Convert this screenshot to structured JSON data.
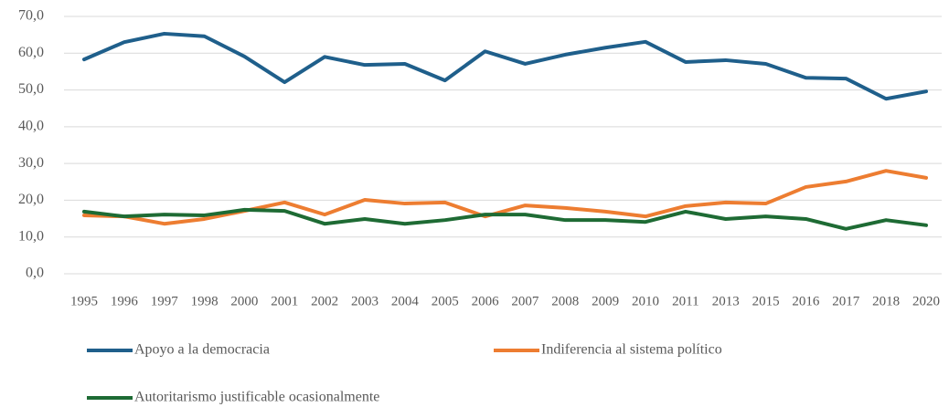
{
  "chart_data": {
    "type": "line",
    "categories": [
      "1995",
      "1996",
      "1997",
      "1998",
      "2000",
      "2001",
      "2002",
      "2003",
      "2004",
      "2005",
      "2006",
      "2007",
      "2008",
      "2009",
      "2010",
      "2011",
      "2013",
      "2015",
      "2016",
      "2017",
      "2018",
      "2020"
    ],
    "series": [
      {
        "name": "Apoyo a la democracia",
        "color": "#1f5f8b",
        "values": [
          58.3,
          63.0,
          65.3,
          64.6,
          59.1,
          52.1,
          59.0,
          56.8,
          57.1,
          52.6,
          60.5,
          57.1,
          59.6,
          61.5,
          63.1,
          57.6,
          58.1,
          57.1,
          53.3,
          53.1,
          47.6,
          49.6
        ]
      },
      {
        "name": "Indiferencia al sistema político",
        "color": "#ed7d31",
        "values": [
          15.9,
          15.6,
          13.6,
          14.9,
          17.1,
          19.4,
          16.1,
          20.1,
          19.1,
          19.4,
          15.6,
          18.6,
          17.9,
          16.9,
          15.6,
          18.4,
          19.4,
          19.1,
          23.6,
          25.1,
          28.0,
          26.1
        ]
      },
      {
        "name": "Autoritarismo justificable ocasionalmente",
        "color": "#1e6b34",
        "values": [
          16.9,
          15.6,
          16.1,
          15.9,
          17.4,
          17.1,
          13.6,
          14.9,
          13.6,
          14.6,
          16.1,
          16.1,
          14.6,
          14.6,
          14.1,
          16.9,
          14.9,
          15.6,
          14.9,
          12.2,
          14.6,
          13.2
        ]
      }
    ],
    "ylim": [
      0,
      70
    ],
    "yticks": [
      {
        "value": 0,
        "label": "0,0"
      },
      {
        "value": 10,
        "label": "10,0"
      },
      {
        "value": 20,
        "label": "20,0"
      },
      {
        "value": 30,
        "label": "30,0"
      },
      {
        "value": 40,
        "label": "40,0"
      },
      {
        "value": 50,
        "label": "50,0"
      },
      {
        "value": 60,
        "label": "60,0"
      },
      {
        "value": 70,
        "label": "70,0"
      }
    ],
    "grid": true
  }
}
